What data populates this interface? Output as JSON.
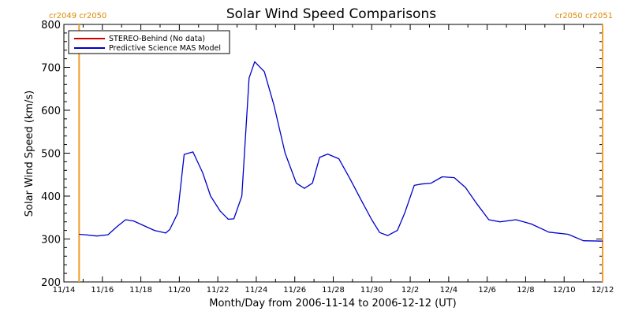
{
  "chart_data": {
    "type": "line",
    "title": "Solar Wind Speed Comparisons",
    "xlabel": "Month/Day from 2006-11-14 to 2006-12-12 (UT)",
    "ylabel": "Solar Wind Speed (km/s)",
    "ylim": [
      200,
      800
    ],
    "xlim": [
      "2006-11-14",
      "2006-12-12"
    ],
    "x_tick_labels": [
      "11/14",
      "11/16",
      "11/18",
      "11/20",
      "11/22",
      "11/24",
      "11/26",
      "11/28",
      "11/30",
      "12/2",
      "12/4",
      "12/6",
      "12/8",
      "12/10",
      "12/12"
    ],
    "y_tick_labels": [
      "200",
      "300",
      "400",
      "500",
      "600",
      "700",
      "800"
    ],
    "legend_position": "top-left",
    "series": [
      {
        "name": "STEREO-Behind (No data)",
        "color": "#cc0000",
        "x": [],
        "y": []
      },
      {
        "name": "Predictive Science MAS Model",
        "color": "#0000cc",
        "x": [
          "2006-11-14T19:00",
          "2006-11-15T03:00",
          "2006-11-15T17:00",
          "2006-11-16T07:00",
          "2006-11-16T19:00",
          "2006-11-17T05:00",
          "2006-11-17T15:00",
          "2006-11-18T05:00",
          "2006-11-18T17:00",
          "2006-11-19T07:00",
          "2006-11-19T12:00",
          "2006-11-19T22:00",
          "2006-11-20T06:00",
          "2006-11-20T17:00",
          "2006-11-21T05:00",
          "2006-11-21T15:00",
          "2006-11-22T03:00",
          "2006-11-22T13:00",
          "2006-11-22T20:00",
          "2006-11-23T06:00",
          "2006-11-23T15:00",
          "2006-11-23T22:00",
          "2006-11-24T10:00",
          "2006-11-24T22:00",
          "2006-11-25T12:00",
          "2006-11-26T02:00",
          "2006-11-26T12:00",
          "2006-11-26T22:00",
          "2006-11-27T07:00",
          "2006-11-27T17:00",
          "2006-11-28T07:00",
          "2006-11-28T21:00",
          "2006-11-29T11:00",
          "2006-11-30T00:00",
          "2006-11-30T10:00",
          "2006-11-30T20:00",
          "2006-12-01T08:00",
          "2006-12-01T17:00",
          "2006-12-02T05:00",
          "2006-12-02T14:00",
          "2006-12-03T02:00",
          "2006-12-03T16:00",
          "2006-12-04T07:00",
          "2006-12-04T21:00",
          "2006-12-05T10:00",
          "2006-12-06T02:00",
          "2006-12-06T16:00",
          "2006-12-07T12:00",
          "2006-12-08T07:00",
          "2006-12-09T05:00",
          "2006-12-10T05:00",
          "2006-12-11T00:00",
          "2006-12-12T00:00"
        ],
        "y": [
          311,
          310,
          307,
          310,
          330,
          345,
          342,
          330,
          320,
          314,
          322,
          360,
          497,
          503,
          455,
          400,
          365,
          346,
          347,
          400,
          675,
          713,
          690,
          612,
          500,
          430,
          418,
          430,
          490,
          498,
          487,
          440,
          390,
          345,
          315,
          308,
          320,
          360,
          425,
          428,
          430,
          445,
          443,
          420,
          385,
          345,
          340,
          345,
          335,
          316,
          311,
          296,
          295
        ]
      }
    ],
    "annotations": {
      "left_label": "cr2049 cr2050",
      "right_label": "cr2050 cr2051",
      "marker_color": "#f0a030",
      "left_marker_x": "2006-11-14T19:00",
      "right_marker_x": "2006-12-12T00:00"
    }
  }
}
